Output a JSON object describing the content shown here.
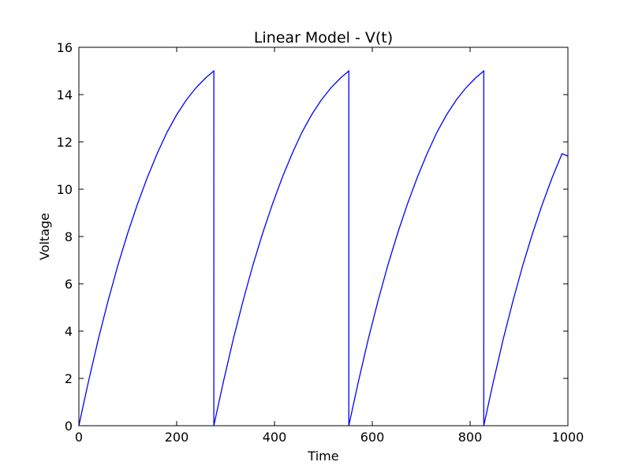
{
  "chart_data": {
    "type": "line",
    "title": "Linear Model - V(t)",
    "xlabel": "Time",
    "ylabel": "Voltage",
    "xlim": [
      0,
      1000
    ],
    "ylim": [
      0,
      16
    ],
    "xticks": [
      0,
      200,
      400,
      600,
      800,
      1000
    ],
    "yticks": [
      0,
      2,
      4,
      6,
      8,
      10,
      12,
      14,
      16
    ],
    "grid": false,
    "line_color": "#0000ff",
    "series": [
      {
        "values": [
          [
            0,
            0.0
          ],
          [
            10,
            0.96
          ],
          [
            20,
            1.9
          ],
          [
            40,
            3.68
          ],
          [
            60,
            5.3
          ],
          [
            80,
            6.8
          ],
          [
            100,
            8.15
          ],
          [
            120,
            9.38
          ],
          [
            140,
            10.5
          ],
          [
            160,
            11.5
          ],
          [
            180,
            12.4
          ],
          [
            200,
            13.15
          ],
          [
            220,
            13.78
          ],
          [
            240,
            14.3
          ],
          [
            260,
            14.72
          ],
          [
            276,
            15.0
          ],
          [
            276,
            0.0
          ],
          [
            286,
            0.96
          ],
          [
            296,
            1.9
          ],
          [
            316,
            3.68
          ],
          [
            336,
            5.3
          ],
          [
            356,
            6.8
          ],
          [
            376,
            8.15
          ],
          [
            396,
            9.38
          ],
          [
            416,
            10.5
          ],
          [
            436,
            11.5
          ],
          [
            456,
            12.4
          ],
          [
            476,
            13.15
          ],
          [
            496,
            13.78
          ],
          [
            516,
            14.3
          ],
          [
            536,
            14.72
          ],
          [
            552,
            15.0
          ],
          [
            552,
            0.0
          ],
          [
            562,
            0.96
          ],
          [
            572,
            1.9
          ],
          [
            592,
            3.68
          ],
          [
            612,
            5.3
          ],
          [
            632,
            6.8
          ],
          [
            652,
            8.15
          ],
          [
            672,
            9.38
          ],
          [
            692,
            10.5
          ],
          [
            712,
            11.5
          ],
          [
            732,
            12.4
          ],
          [
            752,
            13.15
          ],
          [
            772,
            13.78
          ],
          [
            792,
            14.3
          ],
          [
            812,
            14.72
          ],
          [
            828,
            15.0
          ],
          [
            828,
            0.0
          ],
          [
            838,
            0.96
          ],
          [
            848,
            1.9
          ],
          [
            868,
            3.68
          ],
          [
            888,
            5.3
          ],
          [
            908,
            6.8
          ],
          [
            928,
            8.15
          ],
          [
            948,
            9.38
          ],
          [
            968,
            10.5
          ],
          [
            988,
            11.5
          ],
          [
            1000,
            11.4
          ]
        ]
      }
    ]
  }
}
